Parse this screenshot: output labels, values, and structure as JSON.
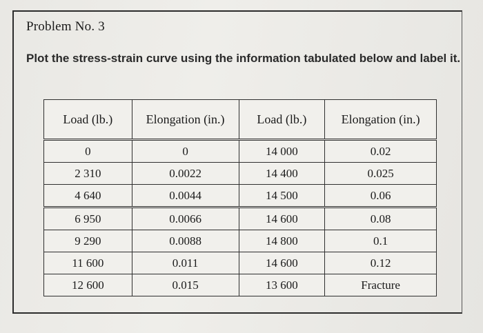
{
  "problem": {
    "title": "Problem No. 3",
    "instructions": "Plot the stress-strain curve using the information tabulated below and label it."
  },
  "table": {
    "headers": [
      "Load (lb.)",
      "Elongation (in.)",
      "Load (lb.)",
      "Elongation (in.)"
    ],
    "rows": [
      [
        "0",
        "0",
        "14 000",
        "0.02"
      ],
      [
        "2 310",
        "0.0022",
        "14 400",
        "0.025"
      ],
      [
        "4 640",
        "0.0044",
        "14 500",
        "0.06"
      ],
      [
        "6 950",
        "0.0066",
        "14 600",
        "0.08"
      ],
      [
        "9 290",
        "0.0088",
        "14 800",
        "0.1"
      ],
      [
        "11 600",
        "0.011",
        "14 600",
        "0.12"
      ],
      [
        "12 600",
        "0.015",
        "13 600",
        "Fracture"
      ]
    ]
  }
}
